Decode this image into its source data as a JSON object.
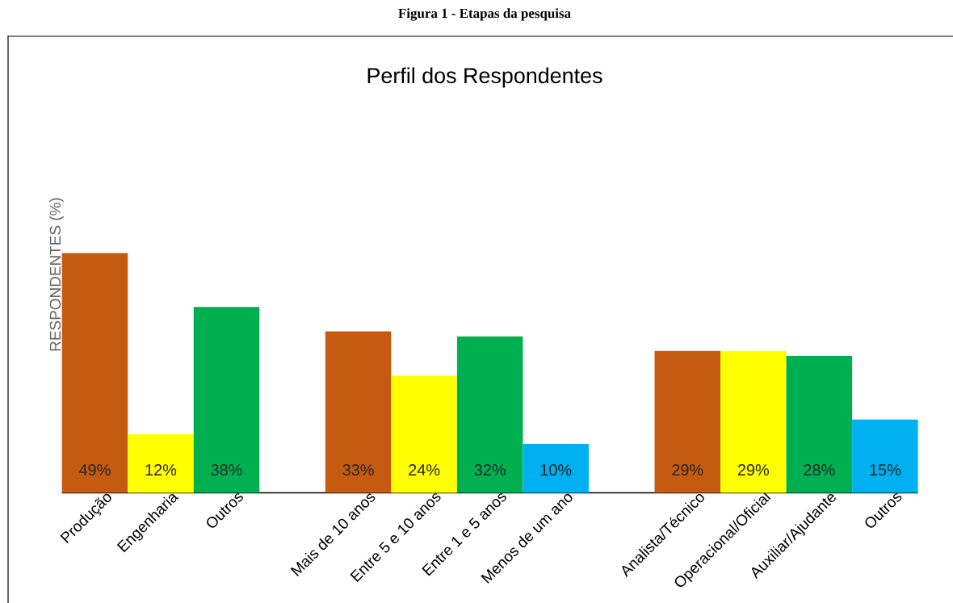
{
  "chart_data": {
    "type": "bar",
    "title": "Perfil dos Respondentes",
    "ylabel": "RESPONDENTES (%)",
    "annotations": [
      "Figura 1 - Etapas da pesquisa"
    ],
    "categories": [
      "Produção",
      "Engenharia",
      "Outros",
      null,
      "Mais de 10 anos",
      "Entre 5 e 10 anos",
      "Entre 1 e 5 anos",
      "Menos de um ano",
      null,
      "Analista/Técnico",
      "Operacional/Oficial",
      "Auxiliar/Ajudante",
      "Outros"
    ],
    "values": [
      49,
      12,
      38,
      null,
      33,
      24,
      32,
      10,
      null,
      29,
      29,
      28,
      15
    ],
    "value_labels": [
      "49%",
      "12%",
      "38%",
      null,
      "33%",
      "24%",
      "32%",
      "10%",
      null,
      "29%",
      "29%",
      "28%",
      "15%"
    ],
    "colors": [
      "#c55a11",
      "#ffff00",
      "#00b050",
      null,
      "#c55a11",
      "#ffff00",
      "#00b050",
      "#00b0f0",
      null,
      "#c55a11",
      "#ffff00",
      "#00b050",
      "#00b0f0"
    ],
    "ylim": [
      0,
      49
    ]
  }
}
